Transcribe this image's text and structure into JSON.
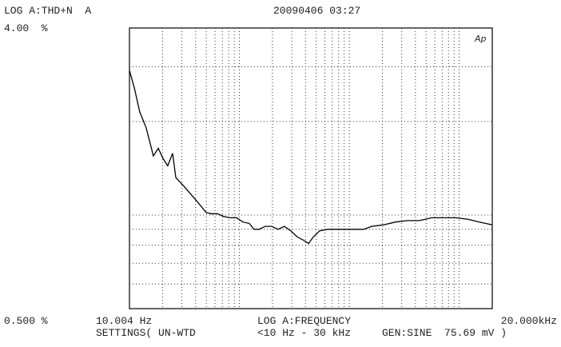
{
  "header": {
    "timestamp": "20090406 03:27"
  },
  "chart_data": {
    "type": "line",
    "y_label": "LOG A:THD+N  A",
    "x_label": "LOG A:FREQUENCY",
    "logo": "Ap",
    "log_x": true,
    "log_y": true,
    "grid": true,
    "xlim": [
      10.004,
      20000
    ],
    "ylim": [
      0.5,
      4
    ],
    "xticks": [
      {
        "value": 10.004,
        "label": "10.004 Hz"
      },
      {
        "value": 20000,
        "label": "20.000kHz"
      }
    ],
    "yticks": [
      {
        "value": 0.5,
        "label": "0.500 %"
      },
      {
        "value": 4,
        "label": "4.00  %"
      }
    ],
    "xgrid": [
      20,
      30,
      40,
      50,
      60,
      70,
      80,
      90,
      100,
      200,
      300,
      400,
      500,
      600,
      700,
      800,
      900,
      1000,
      2000,
      3000,
      4000,
      5000,
      6000,
      7000,
      8000,
      9000,
      10000
    ],
    "ygrid": [
      0.6,
      0.7,
      0.8,
      0.9,
      1,
      2,
      3
    ],
    "x": [
      10,
      11.1,
      12.4,
      14.2,
      16.5,
      18.3,
      20.2,
      22.3,
      24.7,
      26.4,
      31.2,
      40.1,
      49.9,
      55.2,
      63.1,
      72.1,
      82.5,
      94.3,
      108,
      123,
      136,
      151,
      172,
      197,
      225,
      257,
      294,
      337,
      385,
      426,
      470,
      538,
      636,
      752,
      1050,
      1350,
      1600,
      2050,
      2640,
      3390,
      4360,
      5600,
      7200,
      9260,
      11900,
      15300,
      20000
    ],
    "series": [
      {
        "color": "#000000",
        "values": [
          2.92,
          2.56,
          2.15,
          1.91,
          1.55,
          1.64,
          1.52,
          1.44,
          1.58,
          1.32,
          1.24,
          1.12,
          1.02,
          1.01,
          1.01,
          0.99,
          0.98,
          0.98,
          0.95,
          0.94,
          0.9,
          0.9,
          0.92,
          0.92,
          0.9,
          0.92,
          0.89,
          0.85,
          0.83,
          0.81,
          0.85,
          0.89,
          0.9,
          0.9,
          0.9,
          0.9,
          0.92,
          0.93,
          0.95,
          0.96,
          0.96,
          0.98,
          0.98,
          0.98,
          0.97,
          0.95,
          0.93
        ]
      }
    ]
  },
  "footer": {
    "settings": "SETTINGS( UN-WTD",
    "filter": "<10 Hz - 30 kHz",
    "generator": "GEN:SINE  75.69 mV )"
  }
}
